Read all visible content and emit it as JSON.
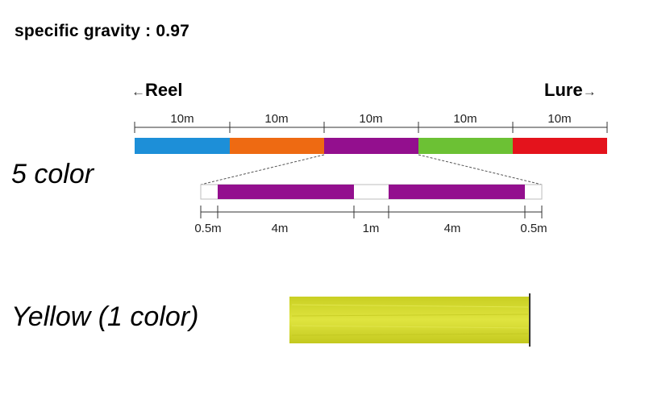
{
  "heading": "specific gravity : 0.97",
  "directions": {
    "reel": "Reel",
    "lure": "Lure",
    "arrow_left": "←",
    "arrow_right": "→"
  },
  "main_segments": [
    {
      "label": "10m",
      "color": "#1d8fd8"
    },
    {
      "label": "10m",
      "color": "#ee6a12"
    },
    {
      "label": "10m",
      "color": "#930f8e"
    },
    {
      "label": "10m",
      "color": "#6cc134"
    },
    {
      "label": "10m",
      "color": "#e4131c"
    }
  ],
  "detail_segments": [
    {
      "label": "0.5m",
      "color": "#ffffff"
    },
    {
      "label": "4m",
      "color": "#930f8e"
    },
    {
      "label": "1m",
      "color": "#ffffff"
    },
    {
      "label": "4m",
      "color": "#930f8e"
    },
    {
      "label": "0.5m",
      "color": "#ffffff"
    }
  ],
  "labels": {
    "five_color": "5 color",
    "yellow": "Yellow (1 color)"
  },
  "yellow_line": {
    "color": "#d7dc2e"
  }
}
